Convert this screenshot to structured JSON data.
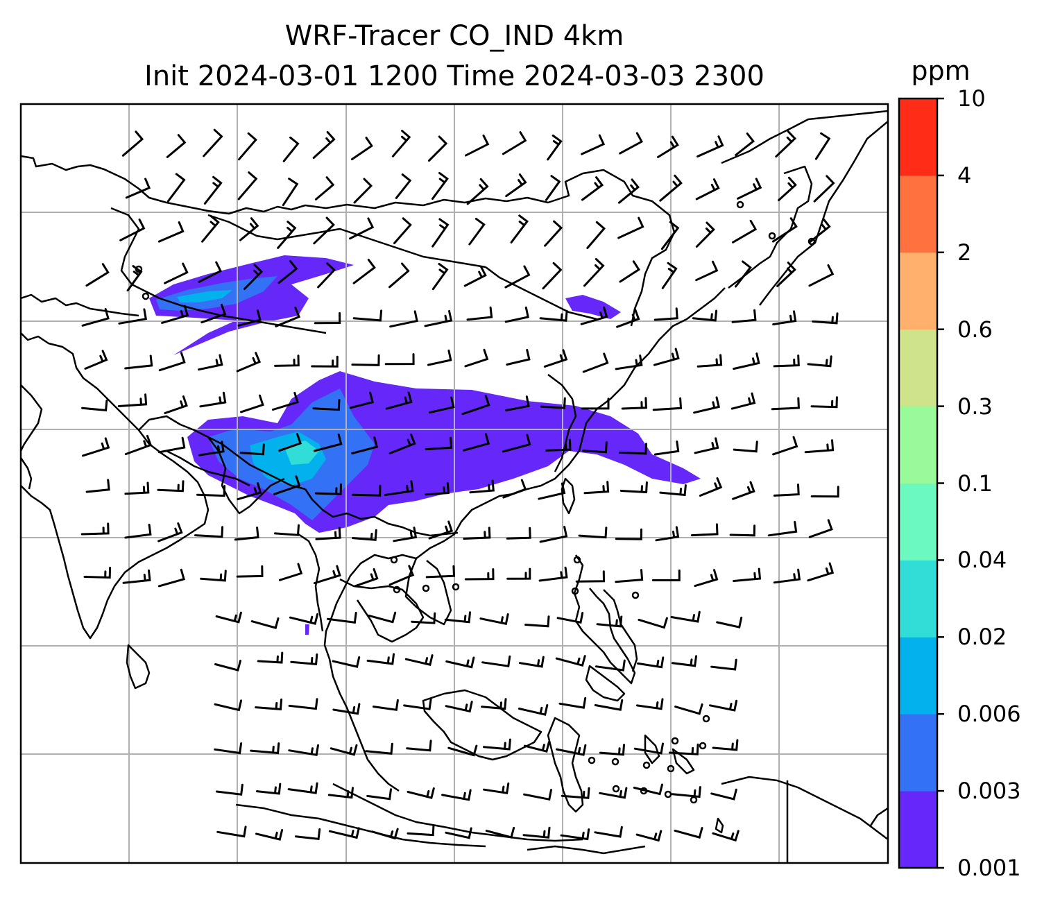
{
  "title": {
    "line1": "WRF-Tracer CO_IND 4km",
    "line2": "Init 2024-03-01 1200 Time 2024-03-03 2300"
  },
  "colorbar": {
    "unit": "ppm",
    "ticks": [
      "0.001",
      "0.003",
      "0.006",
      "0.02",
      "0.04",
      "0.1",
      "0.3",
      "0.6",
      "2",
      "4",
      "10"
    ],
    "colors": [
      "#6528f8",
      "#3372f5",
      "#03b2ec",
      "#31ddd7",
      "#6bf9c0",
      "#98fa98",
      "#cfe38a",
      "#ffb06c",
      "#ff7240",
      "#ff2c18"
    ]
  },
  "map": {
    "gridlines": true,
    "coastline_color": "#000000",
    "gridline_color": "#b0b0b0",
    "wind_barb_color": "#000000",
    "plumes": [
      {
        "name": "north-west plume",
        "concentration_bin": "0.001-0.006"
      },
      {
        "name": "central plume",
        "concentration_bin": "0.001-0.04"
      },
      {
        "name": "north-east plume",
        "concentration_bin": "0.001-0.003"
      }
    ]
  }
}
